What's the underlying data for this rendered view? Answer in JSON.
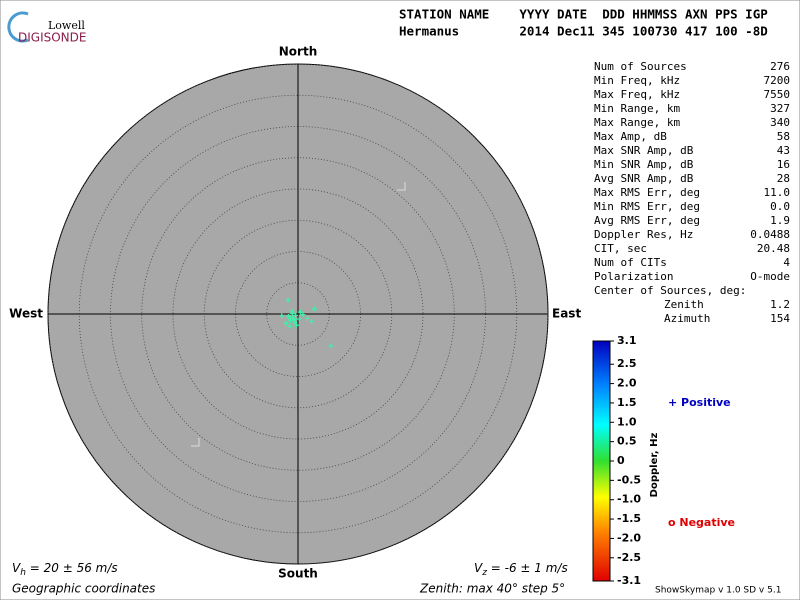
{
  "chart_data": {
    "type": "skymap",
    "logo": {
      "top": "Lowell",
      "bottom": "DIGISONDE"
    },
    "header": [
      "STATION NAME    YYYY DATE  DDD HHMMSS AXN PPS IGP",
      "Hermanus        2014 Dec11 345 100730 417 100 -8D"
    ],
    "directions": {
      "north": "North",
      "south": "South",
      "east": "East",
      "west": "West"
    },
    "rlim": [
      0,
      40
    ],
    "rticks": [
      5,
      10,
      15,
      20,
      25,
      30,
      35,
      40
    ],
    "x": [
      -1.6,
      2.6,
      5.3,
      -2.6,
      -0.8,
      -0.4,
      -1.2,
      0.2,
      -0.9,
      -0.5,
      -1.5,
      0.4,
      1.5,
      -1.9,
      -0.2,
      -1.0,
      0.8,
      -0.6,
      2.2,
      -1.3
    ],
    "y": [
      2.2,
      0.8,
      -5.1,
      -0.3,
      -0.6,
      -0.2,
      -1.0,
      -0.8,
      0.1,
      -1.3,
      -0.4,
      0.3,
      -0.7,
      -1.5,
      -1.8,
      0.5,
      -0.1,
      -0.9,
      -1.2,
      -2.0
    ],
    "point_color": "#3ef0a8",
    "stats": [
      [
        "Num of Sources",
        "276"
      ],
      [
        "Min Freq, kHz",
        "7200"
      ],
      [
        "Max Freq, kHz",
        "7550"
      ],
      [
        "Min Range, km",
        "327"
      ],
      [
        "Max Range, km",
        "340"
      ],
      [
        "Max Amp, dB",
        "58"
      ],
      [
        "Max SNR Amp, dB",
        "43"
      ],
      [
        "Min SNR Amp, dB",
        "16"
      ],
      [
        "Avg SNR Amp, dB",
        "28"
      ],
      [
        "Max RMS Err, deg",
        "11.0"
      ],
      [
        "Min RMS Err, deg",
        "0.0"
      ],
      [
        "Avg RMS Err, deg",
        "1.9"
      ],
      [
        "Doppler Res, Hz",
        "0.0488"
      ],
      [
        "CIT, sec",
        "20.48"
      ],
      [
        "Num of CITs",
        "4"
      ],
      [
        "Polarization",
        "O-mode"
      ]
    ],
    "center_title": "Center of Sources, deg:",
    "center": [
      [
        "Zenith",
        "1.2"
      ],
      [
        "Azimuth",
        "154"
      ]
    ],
    "colorbar": {
      "title": "Doppler, Hz",
      "lim": [
        -3.1,
        3.1
      ],
      "ticks": [
        3.1,
        2.5,
        {
          "value": 2,
          "label": "2.0"
        },
        1.5,
        {
          "value": 1,
          "label": "1.0"
        },
        0.5,
        0,
        -0.5,
        {
          "value": -1,
          "label": "-1.0"
        },
        -1.5,
        {
          "value": -2,
          "label": "-2.0"
        },
        -2.5,
        -3.1
      ]
    },
    "positive": "+ Positive",
    "negative": "o Negative",
    "vh": {
      "v": "V",
      "sub": "h",
      "rest": " = 20 ± 56 m/s"
    },
    "vz": {
      "v": "V",
      "sub": "z",
      "rest": " = -6 ± 1 m/s"
    },
    "coords": "Geographic coordinates",
    "zenith_note": "Zenith: max 40°  step 5°",
    "version": "ShowSkymap v 1.0  SD v 5.1"
  }
}
